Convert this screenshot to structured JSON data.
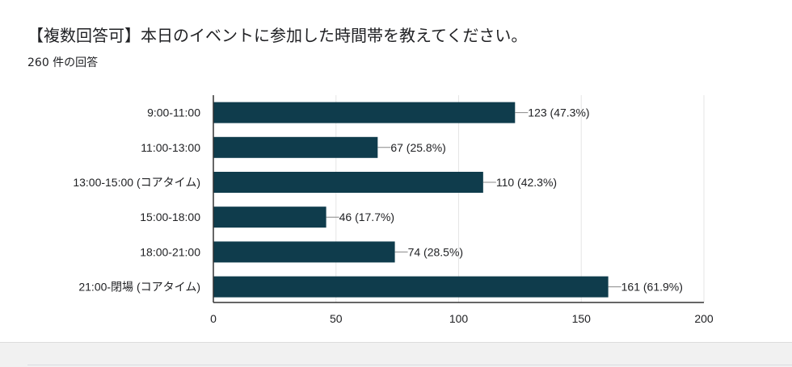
{
  "title": "【複数回答可】本日のイベントに参加した時間帯を教えてください。",
  "response_count": "260 件の回答",
  "colors": {
    "bar": "#0f3c4c",
    "grid": "#e6e6e6",
    "axis": "#333333",
    "text": "#202124"
  },
  "chart_data": {
    "type": "bar",
    "orientation": "horizontal",
    "categories": [
      "9:00-11:00",
      "11:00-13:00",
      "13:00-15:00 (コアタイム)",
      "15:00-18:00",
      "18:00-21:00",
      "21:00-閉場 (コアタイム)"
    ],
    "values": [
      123,
      67,
      110,
      46,
      74,
      161
    ],
    "data_labels": [
      "123 (47.3%)",
      "67 (25.8%)",
      "110 (42.3%)",
      "46 (17.7%)",
      "74 (28.5%)",
      "161 (61.9%)"
    ],
    "xlim": [
      0,
      200
    ],
    "xticks": [
      0,
      50,
      100,
      150,
      200
    ],
    "grid": true,
    "legend": "none"
  }
}
